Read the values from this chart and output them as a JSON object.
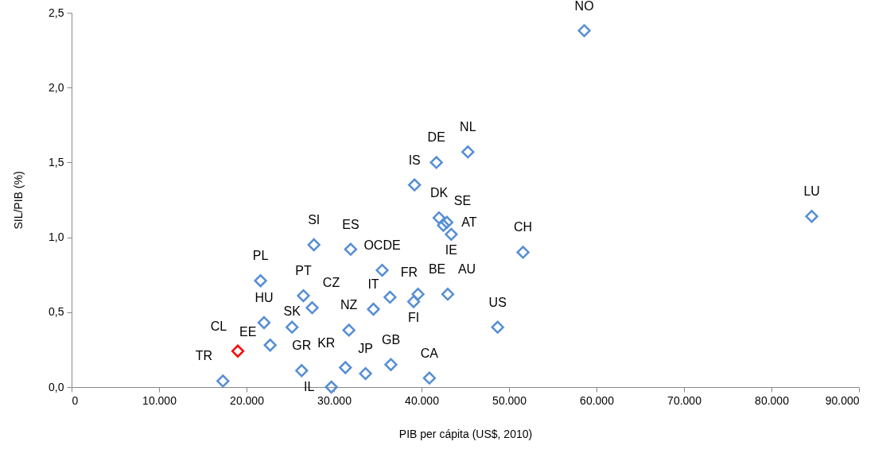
{
  "chart_data": {
    "type": "scatter",
    "xlabel": "PIB per cápita (US$, 2010)",
    "ylabel": "SIL/PIB (%)",
    "xlim": [
      0,
      90000
    ],
    "xticks": [
      0,
      {
        "value": 10000,
        "label": "10.000"
      },
      {
        "value": 20000,
        "label": "20.000"
      },
      {
        "value": 30000,
        "label": "30.000"
      },
      {
        "value": 40000,
        "label": "40.000"
      },
      {
        "value": 50000,
        "label": "50.000"
      },
      {
        "value": 60000,
        "label": "60.000"
      },
      {
        "value": 70000,
        "label": "70.000"
      },
      {
        "value": 80000,
        "label": "80.000"
      },
      {
        "value": 90000,
        "label": "90.000"
      }
    ],
    "ylim": [
      0,
      2.5
    ],
    "yticks": [
      {
        "value": 0,
        "label": "0,0"
      },
      {
        "value": 0.5,
        "label": "0,5"
      },
      {
        "value": 1,
        "label": "1,0"
      },
      {
        "value": 1.5,
        "label": "1,5"
      },
      {
        "value": 2,
        "label": "2,0"
      },
      {
        "value": 2.5,
        "label": "2,5"
      }
    ],
    "grid": false,
    "marker": "diamond",
    "series": [
      {
        "color": "#558ed5",
        "x": [
          58600,
          45300,
          41700,
          39200,
          84600,
          51600,
          42000,
          42500,
          42900,
          43400,
          27700,
          31900,
          35500,
          21600,
          26500,
          27500,
          36400,
          39600,
          39100,
          43000,
          34500,
          22000,
          25200,
          31700,
          48700,
          22700,
          17300,
          26300,
          31300,
          29700,
          33600,
          36500,
          40900
        ],
        "values": [
          2.38,
          1.57,
          1.5,
          1.35,
          1.14,
          0.9,
          1.13,
          1.08,
          1.1,
          1.02,
          0.95,
          0.92,
          0.78,
          0.71,
          0.61,
          0.53,
          0.6,
          0.62,
          0.57,
          0.62,
          0.52,
          0.43,
          0.4,
          0.38,
          0.4,
          0.28,
          0.04,
          0.11,
          0.13,
          0.0,
          0.09,
          0.15,
          0.06
        ]
      },
      {
        "color": "#ff0000",
        "x": [
          19000
        ],
        "values": [
          0.24
        ]
      }
    ],
    "annotations": [
      {
        "text": "NO",
        "x": 58600,
        "y": 2.38
      },
      {
        "text": "NL",
        "x": 45300,
        "y": 1.57
      },
      {
        "text": "DE",
        "x": 41700,
        "y": 1.5
      },
      {
        "text": "IS",
        "x": 39200,
        "y": 1.35
      },
      {
        "text": "LU",
        "x": 84600,
        "y": 1.14
      },
      {
        "text": "CH",
        "x": 51600,
        "y": 0.9
      },
      {
        "text": "DK",
        "x": 42000,
        "y": 1.13
      },
      {
        "text": "SE",
        "x": 42500,
        "y": 1.08
      },
      {
        "text": "AT",
        "x": 42900,
        "y": 1.1
      },
      {
        "text": "IE",
        "x": 43400,
        "y": 1.02
      },
      {
        "text": "SI",
        "x": 27700,
        "y": 0.95
      },
      {
        "text": "ES",
        "x": 31900,
        "y": 0.92
      },
      {
        "text": "OCDE",
        "x": 35500,
        "y": 0.78
      },
      {
        "text": "PL",
        "x": 21600,
        "y": 0.71
      },
      {
        "text": "PT",
        "x": 26500,
        "y": 0.61
      },
      {
        "text": "CZ",
        "x": 27500,
        "y": 0.53
      },
      {
        "text": "FR",
        "x": 36400,
        "y": 0.6
      },
      {
        "text": "BE",
        "x": 39600,
        "y": 0.62
      },
      {
        "text": "FI",
        "x": 39100,
        "y": 0.57
      },
      {
        "text": "AU",
        "x": 43000,
        "y": 0.62
      },
      {
        "text": "IT",
        "x": 34500,
        "y": 0.52
      },
      {
        "text": "HU",
        "x": 22000,
        "y": 0.43
      },
      {
        "text": "SK",
        "x": 25200,
        "y": 0.4
      },
      {
        "text": "NZ",
        "x": 31700,
        "y": 0.38
      },
      {
        "text": "US",
        "x": 48700,
        "y": 0.4
      },
      {
        "text": "EE",
        "x": 22700,
        "y": 0.28
      },
      {
        "text": "CL",
        "x": 19000,
        "y": 0.24
      },
      {
        "text": "TR",
        "x": 17300,
        "y": 0.04
      },
      {
        "text": "GR",
        "x": 26300,
        "y": 0.11
      },
      {
        "text": "KR",
        "x": 31300,
        "y": 0.13
      },
      {
        "text": "IL",
        "x": 29700,
        "y": 0.0
      },
      {
        "text": "JP",
        "x": 33600,
        "y": 0.09
      },
      {
        "text": "GB",
        "x": 36500,
        "y": 0.15
      },
      {
        "text": "CA",
        "x": 40900,
        "y": 0.06
      }
    ]
  }
}
